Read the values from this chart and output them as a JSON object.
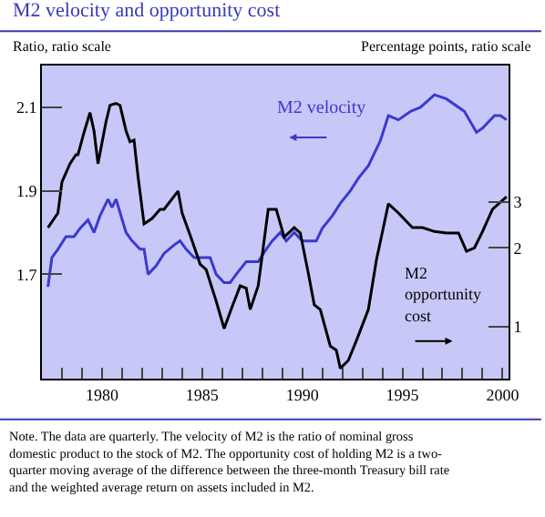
{
  "chart_data": {
    "type": "line",
    "title": "M2 velocity and opportunity cost",
    "ylabel": "Ratio, ratio scale",
    "y2label": "Percentage points, ratio scale",
    "log": "y2",
    "xlim": [
      1977,
      2000.3
    ],
    "xticks": [
      {
        "value": 1977,
        "label": null
      },
      {
        "value": 1978,
        "label": null
      },
      {
        "value": 1979,
        "label": null
      },
      1980,
      {
        "value": 1981,
        "label": null
      },
      {
        "value": 1982,
        "label": null
      },
      {
        "value": 1983,
        "label": null
      },
      {
        "value": 1984,
        "label": null
      },
      1985,
      {
        "value": 1986,
        "label": null
      },
      {
        "value": 1987,
        "label": null
      },
      {
        "value": 1988,
        "label": null
      },
      {
        "value": 1989,
        "label": null
      },
      1990,
      {
        "value": 1991,
        "label": null
      },
      {
        "value": 1992,
        "label": null
      },
      {
        "value": 1993,
        "label": null
      },
      {
        "value": 1994,
        "label": null
      },
      1995,
      {
        "value": 1996,
        "label": null
      },
      {
        "value": 1997,
        "label": null
      },
      {
        "value": 1998,
        "label": null
      },
      {
        "value": 1999,
        "label": null
      },
      2000
    ],
    "ylim": [
      1.45,
      2.2
    ],
    "yticks": [
      1.7,
      1.9,
      2.1
    ],
    "y2lim": [
      0.63,
      10
    ],
    "y2ticks": [
      1,
      2,
      3
    ],
    "grid": false,
    "legend": false,
    "series": [
      {
        "name": "M2 velocity",
        "color": "#3a3ad0",
        "x": [
          1977.3,
          1977.5,
          1977.8,
          1978.2,
          1978.6,
          1978.9,
          1979.3,
          1979.6,
          1979.9,
          1980.3,
          1980.5,
          1980.7,
          1981.2,
          1981.5,
          1981.9,
          1982.1,
          1982.3,
          1982.7,
          1983.1,
          1983.6,
          1983.9,
          1984.2,
          1984.6,
          1984.9,
          1985.4,
          1985.7,
          1986.1,
          1986.4,
          1986.7,
          1987.2,
          1987.4,
          1987.8,
          1988.2,
          1988.5,
          1988.9,
          1989.2,
          1989.6,
          1990.0,
          1990.3,
          1990.7,
          1991.0,
          1991.5,
          1991.9,
          1992.4,
          1992.8,
          1993.3,
          1993.9,
          1994.3,
          1994.8,
          1995.4,
          1995.9,
          1996.6,
          1997.2,
          1998.1,
          1998.7,
          1999.0,
          1999.6,
          1999.9,
          2000.2
        ],
        "values": [
          1.67,
          1.74,
          1.76,
          1.79,
          1.79,
          1.81,
          1.83,
          1.8,
          1.84,
          1.88,
          1.86,
          1.88,
          1.8,
          1.78,
          1.76,
          1.76,
          1.7,
          1.72,
          1.75,
          1.77,
          1.78,
          1.76,
          1.74,
          1.74,
          1.74,
          1.7,
          1.68,
          1.68,
          1.7,
          1.73,
          1.73,
          1.73,
          1.76,
          1.78,
          1.8,
          1.78,
          1.8,
          1.78,
          1.78,
          1.78,
          1.81,
          1.84,
          1.87,
          1.9,
          1.93,
          1.96,
          2.02,
          2.08,
          2.07,
          2.09,
          2.1,
          2.13,
          2.12,
          2.09,
          2.04,
          2.05,
          2.08,
          2.08,
          2.07
        ]
      },
      {
        "name": "M2 opportunity cost",
        "color": "#000000",
        "axis": "y2",
        "x": [
          1977.3,
          1977.8,
          1978.0,
          1978.4,
          1978.7,
          1978.8,
          1979.1,
          1979.4,
          1979.6,
          1979.8,
          1980.2,
          1980.4,
          1980.7,
          1980.9,
          1981.2,
          1981.4,
          1981.6,
          1981.8,
          1982.1,
          1982.5,
          1982.9,
          1983.1,
          1983.8,
          1984.0,
          1984.5,
          1984.9,
          1985.2,
          1985.7,
          1986.1,
          1986.5,
          1986.9,
          1987.2,
          1987.4,
          1987.8,
          1988.3,
          1988.7,
          1989.1,
          1989.6,
          1989.9,
          1990.3,
          1990.6,
          1990.9,
          1991.4,
          1991.7,
          1991.9,
          1992.3,
          1992.7,
          1993.3,
          1993.7,
          1994.3,
          1994.8,
          1995.5,
          1996.0,
          1996.6,
          1997.2,
          1997.8,
          1998.2,
          1998.6,
          1999.0,
          1999.5,
          2000.2
        ],
        "values": [
          2.39,
          2.72,
          3.58,
          4.2,
          4.55,
          4.55,
          5.53,
          6.6,
          5.62,
          4.2,
          6.09,
          7.04,
          7.16,
          7.04,
          5.62,
          5.1,
          5.18,
          3.75,
          2.47,
          2.59,
          2.81,
          2.81,
          3.3,
          2.72,
          2.13,
          1.73,
          1.65,
          1.25,
          0.98,
          1.19,
          1.43,
          1.4,
          1.16,
          1.43,
          2.81,
          2.81,
          2.2,
          2.39,
          2.28,
          1.6,
          1.21,
          1.16,
          0.84,
          0.81,
          0.69,
          0.74,
          0.88,
          1.16,
          1.79,
          2.95,
          2.72,
          2.39,
          2.39,
          2.31,
          2.28,
          2.28,
          1.94,
          2.0,
          2.31,
          2.81,
          3.14
        ]
      }
    ],
    "annotations": [
      "Note. The data are quarterly. The velocity of M2 is the ratio of nominal gross domestic product to the stock of M2. The opportunity cost of holding M2 is a two-quarter moving average of the difference between the three-month Treasury bill rate and the weighted average return on assets included in M2."
    ]
  }
}
